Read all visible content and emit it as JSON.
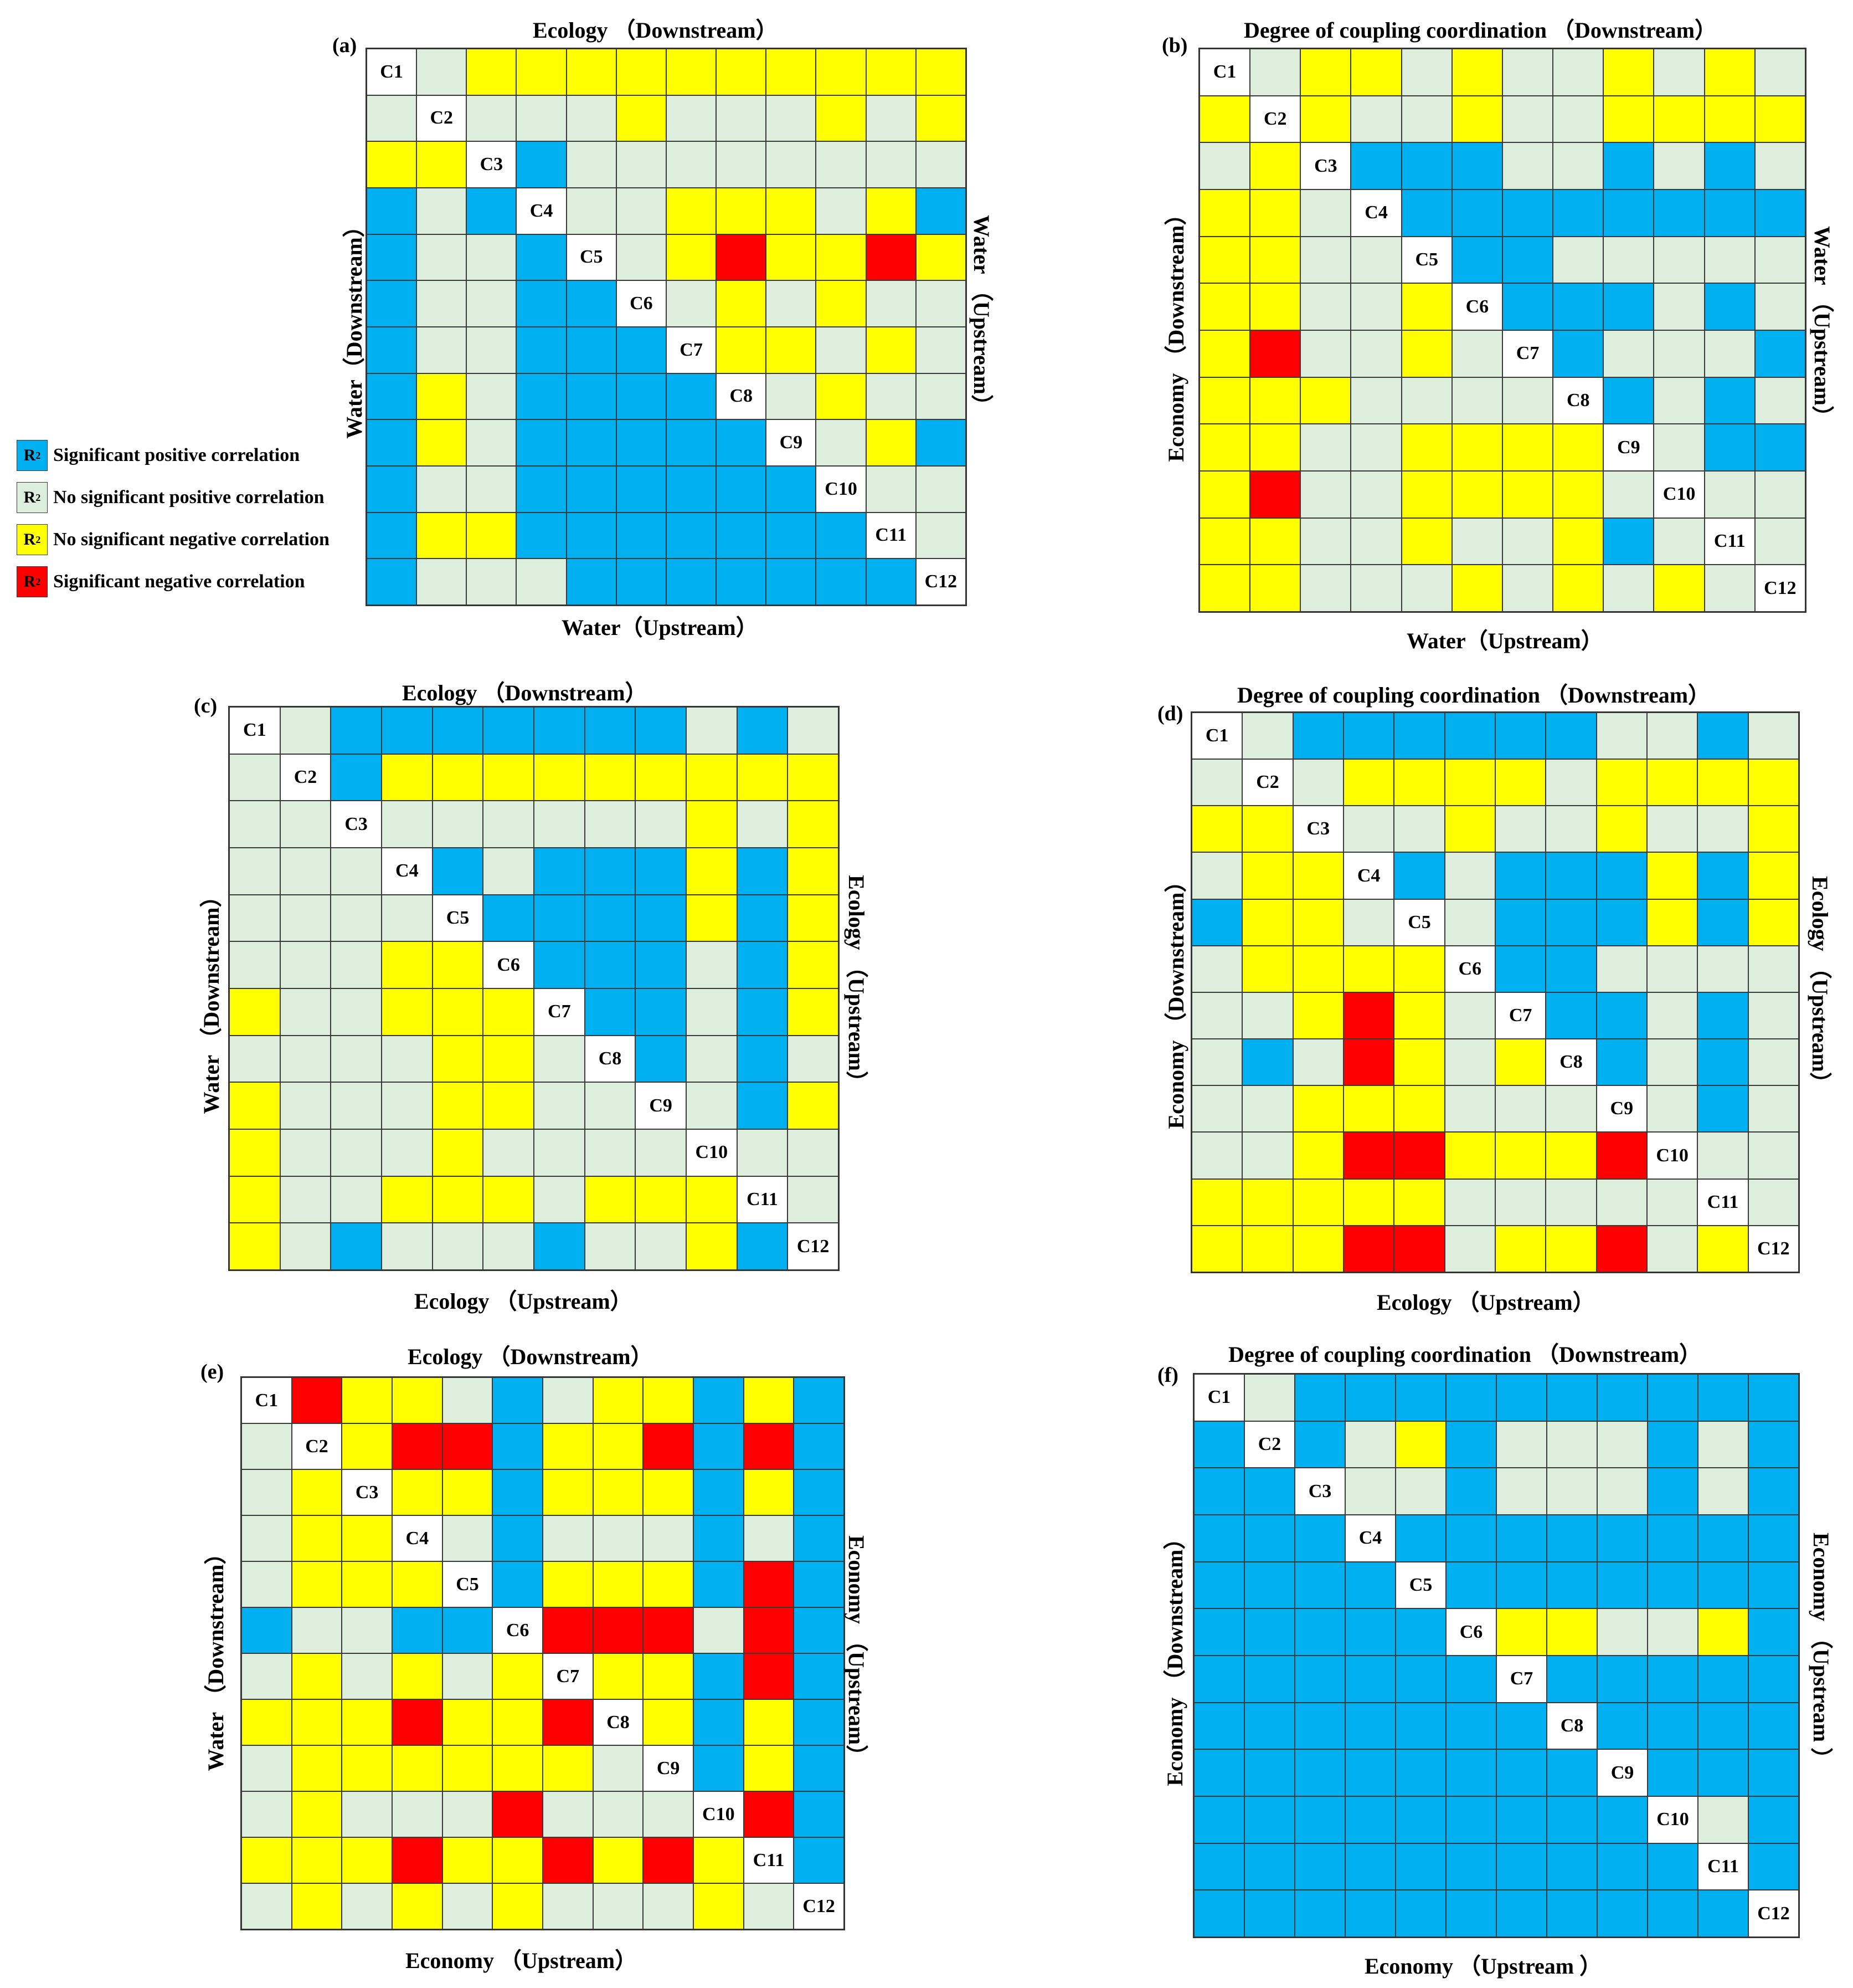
{
  "colors": {
    "B": "#00B0F0",
    "G": "#DDEEDD",
    "Y": "#FFFF00",
    "R": "#FF0000",
    "D": "#FFFFFF"
  },
  "legend": [
    {
      "code": "B",
      "symbol": "R",
      "sup": "2",
      "label": "Significant positive correlation"
    },
    {
      "code": "G",
      "symbol": "R",
      "sup": "2",
      "label": "No significant positive correlation"
    },
    {
      "code": "Y",
      "symbol": "R",
      "sup": "2",
      "label": "No significant negative correlation"
    },
    {
      "code": "R",
      "symbol": "R",
      "sup": "2",
      "label": "Significant negative correlation"
    }
  ],
  "chart_data": [
    {
      "type": "heatmap",
      "panel": "(a)",
      "title": "Ecology （Downstream）",
      "xlabel": "Water（Upstream）",
      "left_label": "Water（Downstream）",
      "right_label": "Water （Upstream）",
      "labels": [
        "C1",
        "C2",
        "C3",
        "C4",
        "C5",
        "C6",
        "C7",
        "C8",
        "C9",
        "C10",
        "C11",
        "C12"
      ],
      "matrix": [
        "DGYYYYYYYYYY",
        "GDGGGYGGGYGY",
        "YYDBGGGGGGGG",
        "BGBDGGYYYGYB",
        "BGGBDGYRYYRY",
        "BGGBBDGYGYGG",
        "BGGBBBDYYGYG",
        "BYGBBBBDGYGG",
        "BYGBBBBBDGYB",
        "BGGBBBBBBDGG",
        "BYYBBBBBBBDG",
        "BGGGBBBBBBBD"
      ]
    },
    {
      "type": "heatmap",
      "panel": "(b)",
      "title": "Degree of coupling coordination （Downstream）",
      "xlabel": "Water（Upstream）",
      "left_label": "Economy （Downstream）",
      "right_label": "Water （Upstream）",
      "labels": [
        "C1",
        "C2",
        "C3",
        "C4",
        "C5",
        "C6",
        "C7",
        "C8",
        "C9",
        "C10",
        "C11",
        "C12"
      ],
      "matrix": [
        "DGYYGYGGYGYG",
        "YDYGGYGGYYYY",
        "GYDBBBGGBGBG",
        "YYGDBBBBBBBB",
        "YYGGDBBGGGGG",
        "YYGGYDBBBGBG",
        "YRGGYGDBGGGB",
        "YYYGGGGDBGBG",
        "YYGGYYYYDGBB",
        "YRGGYYYYGDGG",
        "YYGGYGGYBGDG",
        "YYGGGYGYGYGD"
      ]
    },
    {
      "type": "heatmap",
      "panel": "(c)",
      "title": "Ecology （Downstream）",
      "xlabel": "Ecology （Upstream）",
      "left_label": "Water （Downstream）",
      "right_label": "Ecology （Upstream）",
      "labels": [
        "C1",
        "C2",
        "C3",
        "C4",
        "C5",
        "C6",
        "C7",
        "C8",
        "C9",
        "C10",
        "C11",
        "C12"
      ],
      "matrix": [
        "DGBBBBBBBGBG",
        "GDBYYYYYYYYY",
        "GGDGGGGGGYGY",
        "GGGDBGBBBYBY",
        "GGGGDBBBBYBY",
        "GGGYYDBBBGBY",
        "YGGYYYDBBGBY",
        "GGGGYYGDBGBG",
        "YGGGYYGGDGBY",
        "YGGGYGGGGDGG",
        "YGGYYYGYYYDG",
        "YGBGGGBGGYBD"
      ]
    },
    {
      "type": "heatmap",
      "panel": "(d)",
      "title": "Degree of coupling coordination （Downstream）",
      "xlabel": "Ecology （Upstream）",
      "left_label": "Economy （Downstream）",
      "right_label": "Ecology （Upstream）",
      "labels": [
        "C1",
        "C2",
        "C3",
        "C4",
        "C5",
        "C6",
        "C7",
        "C8",
        "C9",
        "C10",
        "C11",
        "C12"
      ],
      "matrix": [
        "DGBBBBBBGGBG",
        "GDGYYYYGYYYY",
        "YYDGGYGGYGGY",
        "GYYDBGBBBYBY",
        "BYYGDGBBBYBY",
        "GYYYYDBBGGGG",
        "GGYRYGDBBGBG",
        "GBGRYGYDBGBG",
        "GGYYYGGGDGBG",
        "GGYRRYYYRDGG",
        "YYYYYGGGGGDG",
        "YYYRRGYYRGYD"
      ]
    },
    {
      "type": "heatmap",
      "panel": "(e)",
      "title": "Ecology （Downstream）",
      "xlabel": "Economy （Upstream）",
      "left_label": "Water （Downstream）",
      "right_label": "Economy （Upstream）",
      "labels": [
        "C1",
        "C2",
        "C3",
        "C4",
        "C5",
        "C6",
        "C7",
        "C8",
        "C9",
        "C10",
        "C11",
        "C12"
      ],
      "matrix": [
        "DRYYGBGYYBYB",
        "GDYRRBYYRBRB",
        "GYDYYBYYYBYB",
        "GYYDGBGGGBGB",
        "GYYYDBYYYBRB",
        "BGGBBDRRRGRB",
        "GYGYGYDYYBRB",
        "YYYRYYRDYBYB",
        "GYYYYYYGDBYB",
        "GYGGGRGGGDRB",
        "YYYRYYRYRYDB",
        "GYGYGYGGGYGD"
      ]
    },
    {
      "type": "heatmap",
      "panel": "(f)",
      "title": "Degree of coupling coordination （Downstream）",
      "xlabel": "Economy （Upstream ）",
      "left_label": "Economy （Downstream）",
      "right_label": "Economy （Upstream ）",
      "labels": [
        "C1",
        "C2",
        "C3",
        "C4",
        "C5",
        "C6",
        "C7",
        "C8",
        "C9",
        "C10",
        "C11",
        "C12"
      ],
      "matrix": [
        "DGBBBBBBBBBB",
        "BDBGYBGGGBGB",
        "BBDGGBGGGBGB",
        "BBBDBBBBBBBB",
        "BBBBDBBBBBBB",
        "BBBBBDYYGGYB",
        "BBBBBBDBBBBB",
        "BBBBBBBDBBBB",
        "BBBBBBBBDBBB",
        "BBBBBBBBBDGB",
        "BBBBBBBBBBDB",
        "BBBBBBBBBBBD"
      ]
    }
  ]
}
